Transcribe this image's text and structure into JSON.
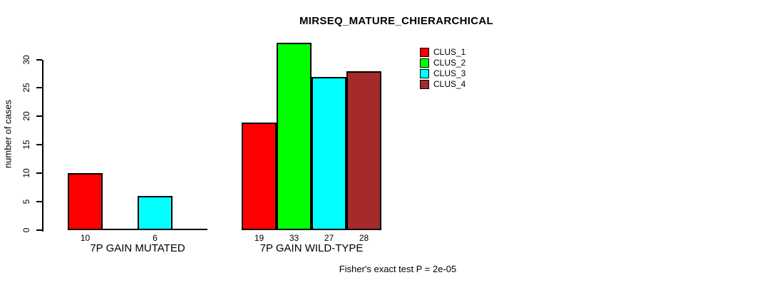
{
  "chart_data": {
    "type": "bar",
    "title": "MIRSEQ_MATURE_CHIERARCHICAL",
    "ylabel": "number of cases",
    "xlabel": "",
    "categories": [
      "7P GAIN MUTATED",
      "7P GAIN WILD-TYPE"
    ],
    "series": [
      {
        "name": "CLUS_1",
        "color": "#FF0000",
        "values": [
          10,
          19
        ]
      },
      {
        "name": "CLUS_2",
        "color": "#00FF00",
        "values": [
          0,
          33
        ]
      },
      {
        "name": "CLUS_3",
        "color": "#00FFFF",
        "values": [
          6,
          27
        ]
      },
      {
        "name": "CLUS_4",
        "color": "#A52A2A",
        "values": [
          0,
          28
        ]
      }
    ],
    "bar_value_labels": [
      [
        "10",
        "",
        "6",
        ""
      ],
      [
        "19",
        "33",
        "27",
        "28"
      ]
    ],
    "yticks": [
      0,
      5,
      10,
      15,
      20,
      25,
      30
    ],
    "ylim": [
      0,
      30
    ],
    "grid": false,
    "legend_position": "top-right",
    "annotation": "Fisher's exact test P = 2e-05"
  },
  "colors": {
    "background": "#FFFFFF",
    "axis": "#000000",
    "text": "#000000"
  }
}
